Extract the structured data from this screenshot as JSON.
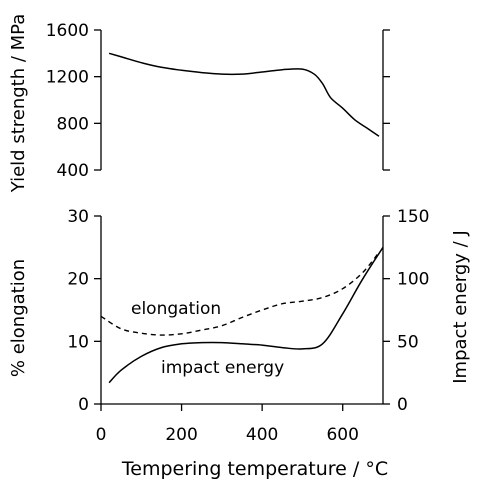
{
  "chart_data": [
    {
      "type": "line",
      "ylabel": "Yield strength / MPa",
      "ylim": [
        400,
        1600
      ],
      "xlim": [
        0,
        700
      ],
      "yticks": [
        "1600",
        "1200",
        "800",
        "400"
      ],
      "series": [
        {
          "x": [
            20,
            60,
            100,
            150,
            200,
            250,
            300,
            350,
            400,
            450,
            500,
            530,
            550,
            570,
            600,
            630,
            660,
            690
          ],
          "values": [
            1400,
            1360,
            1320,
            1280,
            1255,
            1235,
            1222,
            1222,
            1240,
            1260,
            1265,
            1220,
            1140,
            1020,
            930,
            830,
            760,
            690
          ]
        }
      ]
    },
    {
      "type": "line",
      "ylabel": "% elongation",
      "y2label": "Impact energy / J",
      "xlabel": "Tempering temperature / °C",
      "xlim": [
        0,
        700
      ],
      "ylim": [
        0,
        30
      ],
      "y2lim": [
        0,
        150
      ],
      "xticks": [
        "0",
        "200",
        "400",
        "600"
      ],
      "yticks": [
        "30",
        "20",
        "10",
        "0"
      ],
      "y2ticks": [
        "150",
        "100",
        "50",
        "0"
      ],
      "series": [
        {
          "name": "elongation",
          "axis": "left",
          "style": "dashed",
          "x": [
            0,
            50,
            100,
            150,
            200,
            250,
            300,
            350,
            400,
            450,
            500,
            550,
            600,
            650,
            690
          ],
          "values": [
            14,
            12,
            11.3,
            11,
            11.2,
            11.8,
            12.5,
            13.8,
            15,
            16,
            16.4,
            17,
            18.4,
            21,
            24.2
          ]
        },
        {
          "name": "impact energy",
          "axis": "right",
          "style": "solid",
          "x": [
            20,
            50,
            100,
            150,
            200,
            250,
            300,
            350,
            400,
            450,
            500,
            550,
            600,
            650,
            700
          ],
          "values": [
            17,
            27,
            38,
            45,
            48,
            49,
            49,
            48,
            47,
            45,
            44,
            48,
            72,
            100,
            125
          ]
        }
      ],
      "annotations": [
        "elongation",
        "impact energy"
      ]
    }
  ]
}
